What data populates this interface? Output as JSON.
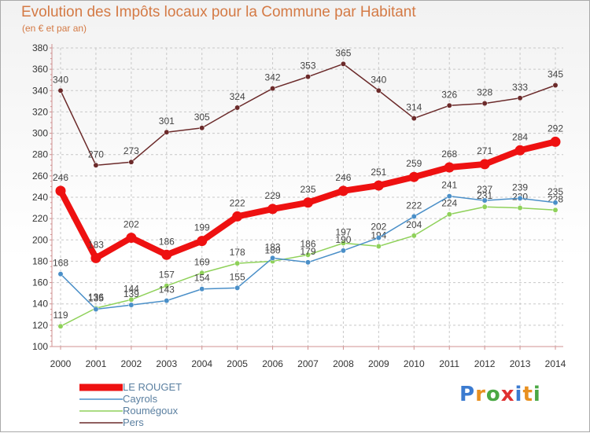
{
  "chart_data": {
    "type": "line",
    "title": "Evolution des Impôts locaux pour la Commune par Habitant",
    "subtitle": "(en € et par an)",
    "xlabel": "",
    "ylabel": "",
    "ylim": [
      100,
      380
    ],
    "yticks": [
      100,
      120,
      140,
      160,
      180,
      200,
      220,
      240,
      260,
      280,
      300,
      320,
      340,
      360,
      380
    ],
    "x": [
      "2000",
      "2001",
      "2002",
      "2003",
      "2004",
      "2005",
      "2006",
      "2007",
      "2008",
      "2009",
      "2010",
      "2011",
      "2012",
      "2013",
      "2014"
    ],
    "grid": true,
    "series": [
      {
        "name": "Pers",
        "color": "#6b2a2a",
        "values": [
          340,
          270,
          273,
          301,
          305,
          324,
          342,
          353,
          365,
          340,
          314,
          326,
          328,
          333,
          345
        ]
      },
      {
        "name": "Roumégoux",
        "color": "#8fd15a",
        "values": [
          119,
          136,
          144,
          157,
          169,
          178,
          180,
          186,
          197,
          194,
          204,
          224,
          231,
          230,
          228
        ]
      },
      {
        "name": "Cayrols",
        "color": "#4a8fc8",
        "values": [
          168,
          135,
          139,
          143,
          154,
          155,
          183,
          179,
          190,
          202,
          222,
          241,
          237,
          239,
          235
        ]
      },
      {
        "name": "LE ROUGET",
        "color": "#ee1111",
        "values": [
          246,
          183,
          202,
          186,
          199,
          222,
          229,
          235,
          246,
          251,
          259,
          268,
          271,
          284,
          292
        ]
      }
    ]
  },
  "legend": {
    "items": [
      {
        "label": "LE ROUGET",
        "color": "#ee1111"
      },
      {
        "label": "Cayrols",
        "color": "#4a8fc8"
      },
      {
        "label": "Roumégoux",
        "color": "#8fd15a"
      },
      {
        "label": "Pers",
        "color": "#6b2a2a"
      }
    ]
  },
  "logo": {
    "letters": [
      "P",
      "r",
      "o",
      "x",
      "i",
      "t",
      "i"
    ],
    "colors": [
      "#3b7bd0",
      "#e89020",
      "#4aa844",
      "#e03030",
      "#3b7bd0",
      "#e89020",
      "#4aa844"
    ]
  }
}
